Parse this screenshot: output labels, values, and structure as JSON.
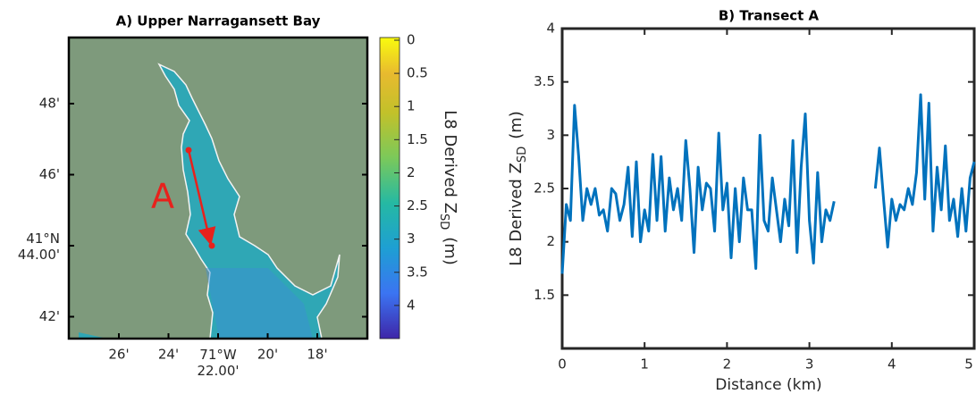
{
  "chart_data": [
    {
      "type": "map",
      "title": "A) Upper Narragansett Bay",
      "xtick_labels": [
        "26'",
        "24'",
        [
          "71°W",
          "22.00'"
        ],
        "20'",
        "18'"
      ],
      "ytick_labels": [
        "48'",
        "46'",
        [
          "41°N",
          "44.00'"
        ],
        "42'"
      ],
      "annotation": "A",
      "colorbar": {
        "clim": [
          0,
          4.5
        ],
        "ticks": [
          0,
          0.5,
          1,
          1.5,
          2,
          2.5,
          3,
          3.5,
          4
        ],
        "reversed": true,
        "label": {
          "text": "L8 Derived Z",
          "subscript": "SD",
          "unit": "(m)"
        }
      }
    },
    {
      "type": "line",
      "title": "B) Transect A",
      "xlabel": "Distance (km)",
      "ylabel": {
        "text": "L8 Derived Z",
        "subscript": "SD",
        "unit": "(m)"
      },
      "xlim": [
        0,
        5
      ],
      "ylim": [
        1,
        4
      ],
      "xticks": [
        0,
        1,
        2,
        3,
        4,
        5
      ],
      "yticks": [
        1.5,
        2,
        2.5,
        3,
        3.5,
        4
      ],
      "color": "#0072bd",
      "x": [
        0,
        0.05,
        0.1,
        0.15,
        0.2,
        0.25,
        0.3,
        0.35,
        0.4,
        0.45,
        0.5,
        0.55,
        0.6,
        0.65,
        0.7,
        0.75,
        0.8,
        0.85,
        0.9,
        0.95,
        1,
        1.05,
        1.1,
        1.15,
        1.2,
        1.25,
        1.3,
        1.35,
        1.4,
        1.45,
        1.5,
        1.55,
        1.6,
        1.65,
        1.7,
        1.75,
        1.8,
        1.85,
        1.9,
        1.95,
        2,
        2.05,
        2.1,
        2.15,
        2.2,
        2.25,
        2.3,
        2.35,
        2.4,
        2.45,
        2.5,
        2.55,
        2.6,
        2.65,
        2.7,
        2.75,
        2.8,
        2.85,
        2.9,
        2.95,
        3,
        3.05,
        3.1,
        3.15,
        3.2,
        3.25,
        3.3,
        3.55,
        3.8,
        3.85,
        3.9,
        3.95,
        4,
        4.05,
        4.1,
        4.15,
        4.2,
        4.25,
        4.3,
        4.35,
        4.4,
        4.45,
        4.5,
        4.55,
        4.6,
        4.65,
        4.7,
        4.75,
        4.8,
        4.85,
        4.9,
        4.95,
        5
      ],
      "values": [
        1.7,
        2.35,
        2.2,
        3.28,
        2.8,
        2.2,
        2.5,
        2.35,
        2.5,
        2.25,
        2.3,
        2.1,
        2.5,
        2.45,
        2.2,
        2.35,
        2.7,
        2.05,
        2.75,
        2.0,
        2.3,
        2.1,
        2.82,
        2.2,
        2.8,
        2.1,
        2.6,
        2.3,
        2.5,
        2.2,
        2.95,
        2.5,
        1.9,
        2.7,
        2.3,
        2.55,
        2.5,
        2.1,
        3.02,
        2.3,
        2.55,
        1.85,
        2.5,
        2.0,
        2.6,
        2.3,
        2.3,
        1.75,
        3.0,
        2.2,
        2.1,
        2.6,
        2.3,
        2.0,
        2.4,
        2.15,
        2.95,
        1.9,
        2.7,
        3.2,
        2.2,
        1.8,
        2.65,
        2.0,
        2.3,
        2.2,
        2.38,
        null,
        2.5,
        2.88,
        2.4,
        1.95,
        2.4,
        2.2,
        2.35,
        2.3,
        2.5,
        2.35,
        2.65,
        3.38,
        2.4,
        3.3,
        2.1,
        2.7,
        2.3,
        2.9,
        2.2,
        2.4,
        2.05,
        2.5,
        2.1,
        2.6,
        2.75
      ]
    }
  ]
}
